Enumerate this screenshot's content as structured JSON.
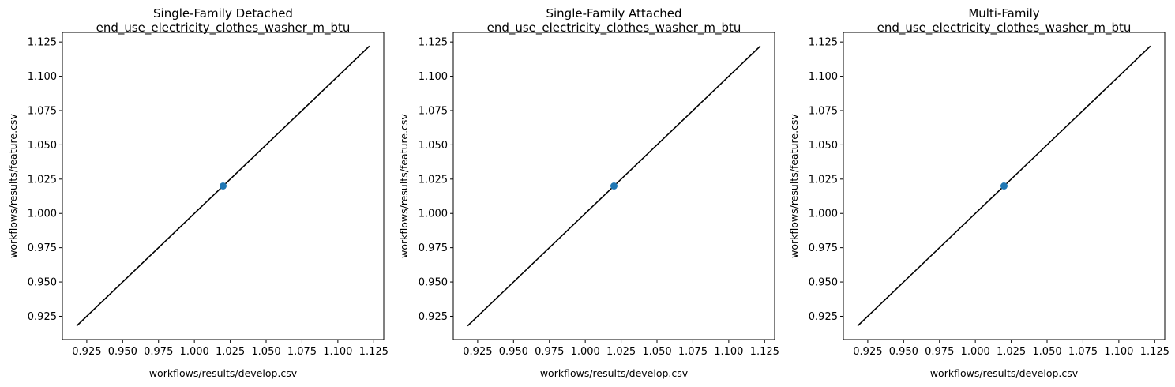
{
  "chart_data": [
    {
      "type": "scatter",
      "title": "Single-Family Detached",
      "subtitle": "end_use_electricity_clothes_washer_m_btu",
      "xlabel": "workflows/results/develop.csv",
      "ylabel": "workflows/results/feature.csv",
      "xlim": [
        0.908,
        1.132
      ],
      "ylim": [
        0.908,
        1.132
      ],
      "xticks": [
        "0.925",
        "0.950",
        "0.975",
        "1.000",
        "1.025",
        "1.050",
        "1.075",
        "1.100",
        "1.125"
      ],
      "yticks": [
        "0.925",
        "0.950",
        "0.975",
        "1.000",
        "1.025",
        "1.050",
        "1.075",
        "1.100",
        "1.125"
      ],
      "points": [
        {
          "x": 1.02,
          "y": 1.02
        }
      ],
      "reference_line": {
        "x": [
          0.918,
          1.122
        ],
        "y": [
          0.918,
          1.122
        ],
        "color": "#000000"
      },
      "marker_color": "#1f77b4",
      "grid": false
    },
    {
      "type": "scatter",
      "title": "Single-Family Attached",
      "subtitle": "end_use_electricity_clothes_washer_m_btu",
      "xlabel": "workflows/results/develop.csv",
      "ylabel": "workflows/results/feature.csv",
      "xlim": [
        0.908,
        1.132
      ],
      "ylim": [
        0.908,
        1.132
      ],
      "xticks": [
        "0.925",
        "0.950",
        "0.975",
        "1.000",
        "1.025",
        "1.050",
        "1.075",
        "1.100",
        "1.125"
      ],
      "yticks": [
        "0.925",
        "0.950",
        "0.975",
        "1.000",
        "1.025",
        "1.050",
        "1.075",
        "1.100",
        "1.125"
      ],
      "points": [
        {
          "x": 1.02,
          "y": 1.02
        }
      ],
      "reference_line": {
        "x": [
          0.918,
          1.122
        ],
        "y": [
          0.918,
          1.122
        ],
        "color": "#000000"
      },
      "marker_color": "#1f77b4",
      "grid": false
    },
    {
      "type": "scatter",
      "title": "Multi-Family",
      "subtitle": "end_use_electricity_clothes_washer_m_btu",
      "xlabel": "workflows/results/develop.csv",
      "ylabel": "workflows/results/feature.csv",
      "xlim": [
        0.908,
        1.132
      ],
      "ylim": [
        0.908,
        1.132
      ],
      "xticks": [
        "0.925",
        "0.950",
        "0.975",
        "1.000",
        "1.025",
        "1.050",
        "1.075",
        "1.100",
        "1.125"
      ],
      "yticks": [
        "0.925",
        "0.950",
        "0.975",
        "1.000",
        "1.025",
        "1.050",
        "1.075",
        "1.100",
        "1.125"
      ],
      "points": [
        {
          "x": 1.02,
          "y": 1.02
        }
      ],
      "reference_line": {
        "x": [
          0.918,
          1.122
        ],
        "y": [
          0.918,
          1.122
        ],
        "color": "#000000"
      },
      "marker_color": "#1f77b4",
      "grid": false
    }
  ]
}
